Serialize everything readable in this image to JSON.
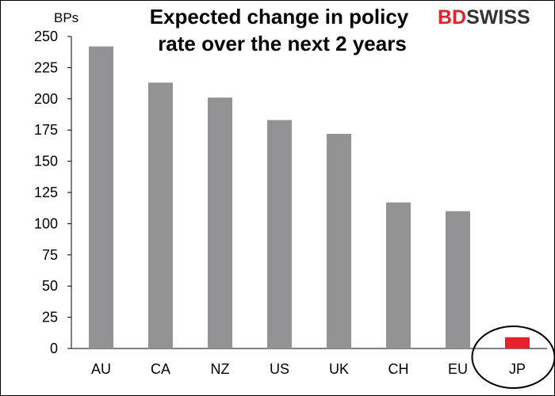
{
  "chart_data": {
    "type": "bar",
    "title_lines": [
      "Expected change in policy",
      "rate over the next 2 years"
    ],
    "ylabel": "BPs",
    "xlabel": "",
    "categories": [
      "AU",
      "CA",
      "NZ",
      "US",
      "UK",
      "CH",
      "EU",
      "JP"
    ],
    "values": [
      242,
      213,
      201,
      183,
      172,
      117,
      110,
      9
    ],
    "ylim": [
      0,
      250
    ],
    "yticks": [
      0,
      25,
      50,
      75,
      100,
      125,
      150,
      175,
      200,
      225,
      250
    ],
    "grid": false,
    "legend": "none",
    "colors": {
      "default_bar": "#939396",
      "highlight_bar": "#e8202a",
      "highlight_category": "JP"
    },
    "annotations": [
      {
        "type": "ellipse-highlight",
        "category": "JP"
      }
    ]
  },
  "brand": {
    "logo_part1": "BD",
    "logo_part2": "SWISS",
    "color_red": "#e8202a",
    "color_dark": "#333333"
  }
}
